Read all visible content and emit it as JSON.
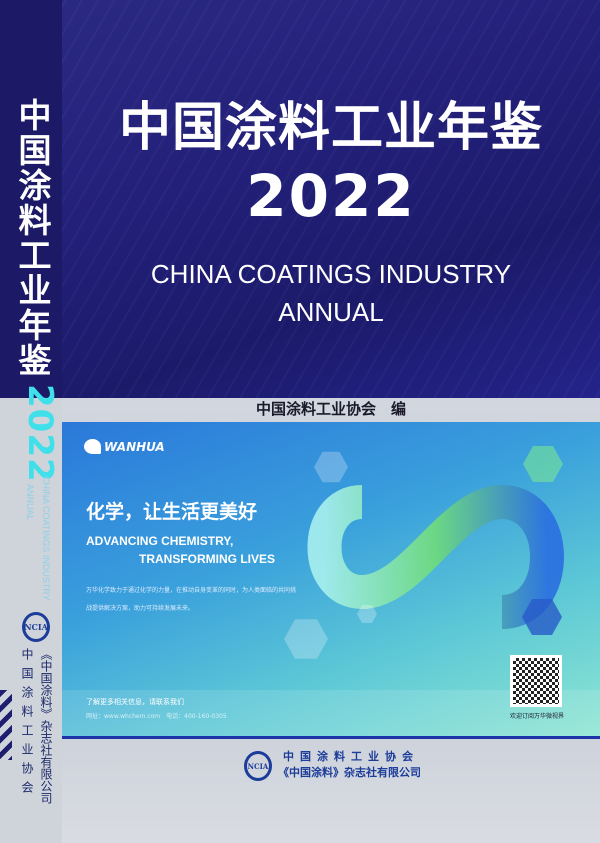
{
  "cover": {
    "title_cn": "中国涂料工业年鉴",
    "year": "2022",
    "title_en_line1": "CHINA COATINGS INDUSTRY",
    "title_en_line2": "ANNUAL",
    "editor": "中国涂料工业协会　编"
  },
  "spine": {
    "title_cn": "中国涂料工业年鉴",
    "year": "2022",
    "title_en_line1": "CHINA COATINGS INDUSTRY",
    "title_en_line2": "ANNUAL",
    "logo": "NCIA",
    "publisher1": "《中国涂料》杂志社有限公司",
    "publisher2": "中国涂料工业协会"
  },
  "ad": {
    "brand": "WANHUA",
    "slogan_cn": "化学，让生活更美好",
    "slogan_en1": "ADVANCING CHEMISTRY,",
    "slogan_en2": "TRANSFORMING LIVES",
    "paragraph": "万华化学致力于通过化学的力量，在推动自身变革的同时，为人类面临的共同挑战提供解决方案，助力可持续发展未来。",
    "contact_title": "了解更多相关信息，请联系我们",
    "contact_info": "网址：www.whchem.com　电话：400-160-0305",
    "qr_caption": "欢迎订阅万华微视界",
    "colors": {
      "blue": "#2a78da",
      "green": "#6fdc7a",
      "teal": "#8ee6d2"
    }
  },
  "publisher": {
    "logo": "NCIA",
    "line1": "中国涂料工业协会",
    "line2": "《中国涂料》杂志社有限公司"
  }
}
